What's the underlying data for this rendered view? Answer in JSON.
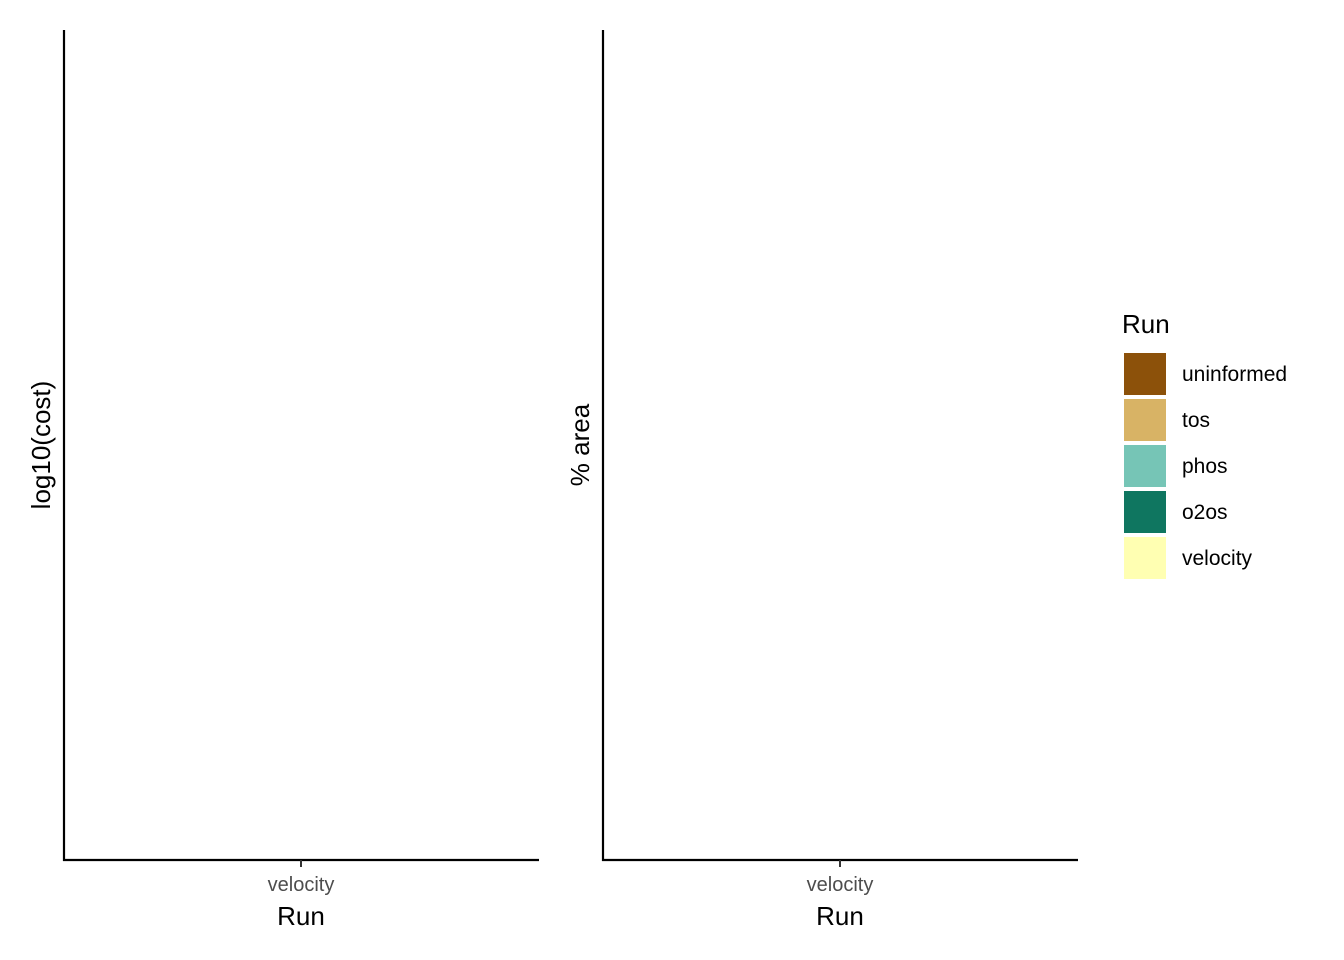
{
  "chart_data": [
    {
      "type": "bar",
      "categories": [
        "velocity"
      ],
      "series": [],
      "xlabel": "Run",
      "ylabel": "log10(cost)",
      "grid": false
    },
    {
      "type": "bar",
      "categories": [
        "velocity"
      ],
      "series": [],
      "xlabel": "Run",
      "ylabel": "% area",
      "grid": false
    }
  ],
  "legend": {
    "title": "Run",
    "placement": "right",
    "items": [
      {
        "label": "uninformed",
        "color": "#8C510A"
      },
      {
        "label": "tos",
        "color": "#D8B365"
      },
      {
        "label": "phos",
        "color": "#76C5B6"
      },
      {
        "label": "o2os",
        "color": "#0F7660"
      },
      {
        "label": "velocity",
        "color": "#FFFFB2"
      }
    ]
  }
}
